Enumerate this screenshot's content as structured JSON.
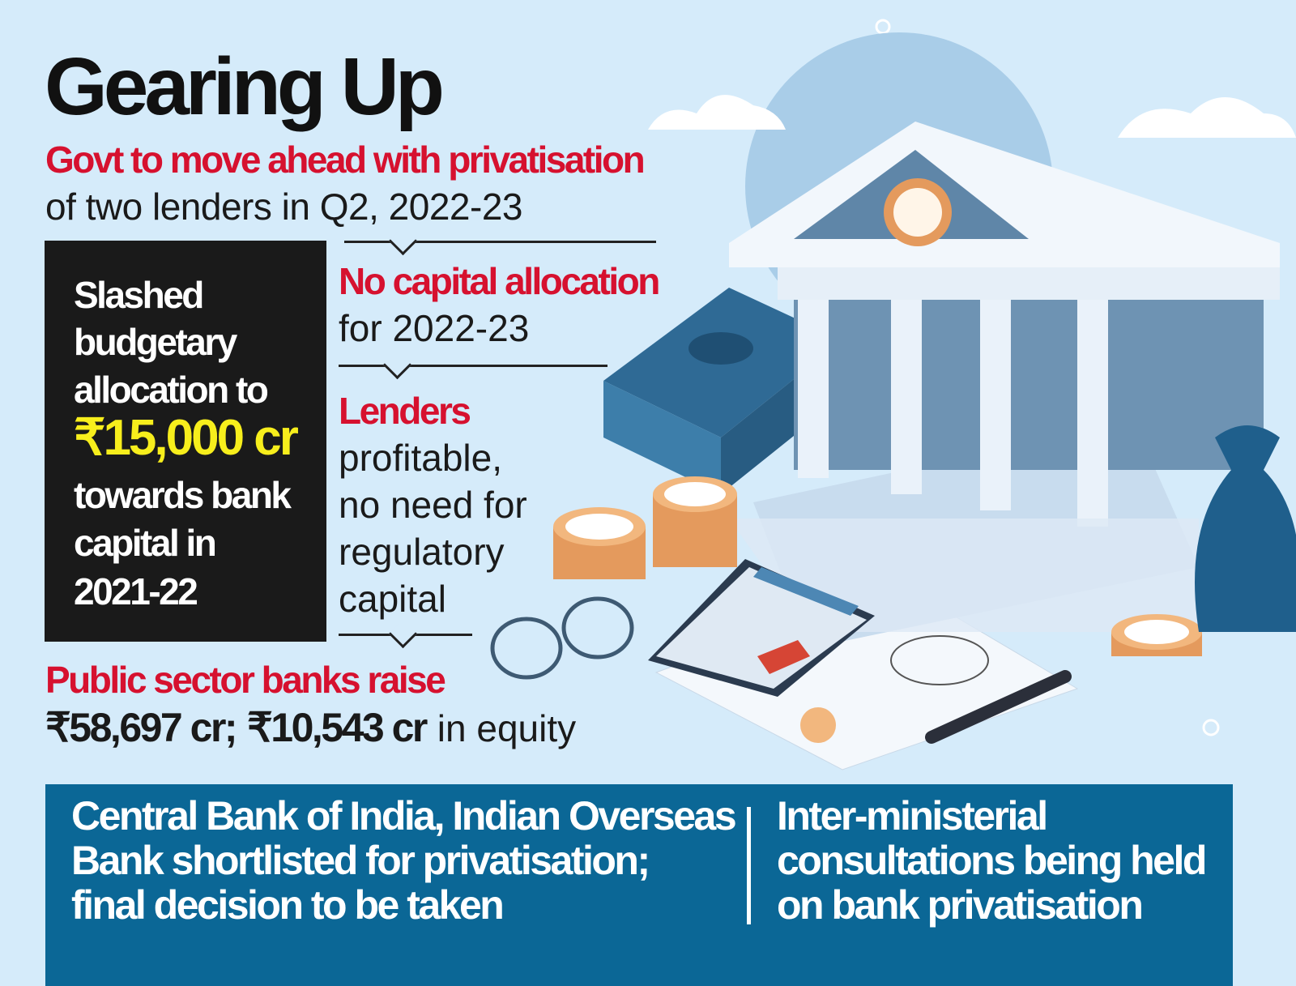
{
  "header": {
    "title": "Gearing Up",
    "subtitle_highlight": "Govt to move ahead with privatisation",
    "subtitle_rest": "of two lenders in Q2, 2022-23"
  },
  "black_box": {
    "lines": [
      "Slashed",
      "budgetary",
      "allocation to"
    ],
    "amount": "₹15,000 cr",
    "lines_after": [
      "towards bank",
      "capital in",
      "2021-22"
    ]
  },
  "points": {
    "no_capital_highlight": "No capital allocation",
    "no_capital_rest": "for 2022-23",
    "lenders_highlight": "Lenders",
    "lenders_rest": [
      "profitable,",
      "no need for",
      "regulatory",
      "capital"
    ],
    "psb_highlight": "Public sector banks raise",
    "psb_amount1": "₹58,697 cr;",
    "psb_amount2": "₹10,543 cr",
    "psb_rest": "in equity"
  },
  "bottom_box": {
    "left": [
      "Central Bank of India, Indian Overseas",
      "Bank shortlisted for privatisation;",
      "final decision to be taken"
    ],
    "right": [
      "Inter-ministerial",
      "consultations being held",
      "on bank privatisation"
    ]
  },
  "colors": {
    "background": "#d5ebfa",
    "highlight_red": "#d6112f",
    "amount_yellow": "#f7ee1c",
    "box_blue": "#0b6796",
    "box_black": "#1a1a1a"
  },
  "illustration": [
    "bank-building-icon",
    "cash-stack-icon",
    "coin-stack-icon",
    "calculator-icon",
    "glasses-icon",
    "money-bag-icon",
    "pen-icon",
    "document-pie-chart-icon"
  ]
}
